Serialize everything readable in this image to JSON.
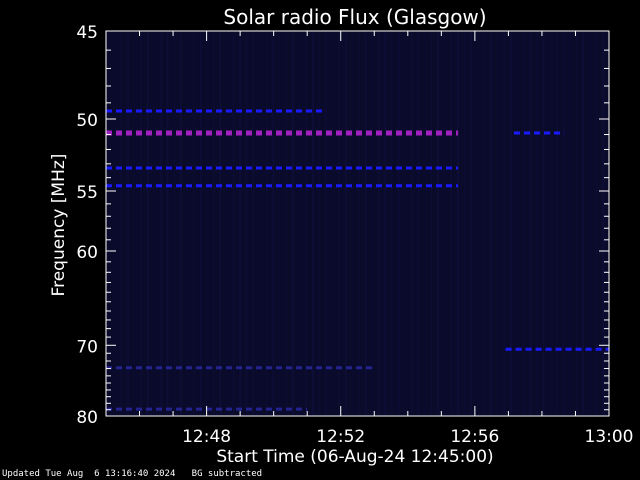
{
  "chart_data": {
    "type": "heatmap",
    "title": "Solar radio Flux (Glasgow)",
    "xlabel": "Start Time (06-Aug-24 12:45:00)",
    "ylabel": "Frequency [MHz]",
    "xlim": [
      "12:45:00",
      "13:00:00"
    ],
    "ylim": [
      45,
      80
    ],
    "y_scale": "reciprocal",
    "x_ticks": [
      "12:48",
      "12:52",
      "12:56",
      "13:00"
    ],
    "x_tick_minutes": [
      48,
      52,
      56,
      60
    ],
    "y_ticks": [
      45,
      50,
      55,
      60,
      70,
      80
    ],
    "background_color": "#0a0a2a",
    "colors": {
      "weak": "#1a1aff",
      "strong": "#a020c0"
    },
    "features": [
      {
        "type": "band",
        "freq_mhz": 50.9,
        "start": "12:45:00",
        "end": "12:55:30",
        "intensity": "strong"
      },
      {
        "type": "band",
        "freq_mhz": 49.5,
        "start": "12:45:00",
        "end": "12:51:30",
        "intensity": "weak"
      },
      {
        "type": "band",
        "freq_mhz": 53.3,
        "start": "12:45:00",
        "end": "12:55:30",
        "intensity": "weak"
      },
      {
        "type": "band",
        "freq_mhz": 54.6,
        "start": "12:45:00",
        "end": "12:55:30",
        "intensity": "weak"
      },
      {
        "type": "band",
        "freq_mhz": 70.5,
        "start": "12:56:55",
        "end": "13:00:00",
        "intensity": "weak"
      },
      {
        "type": "band",
        "freq_mhz": 72.9,
        "start": "12:45:00",
        "end": "12:53:00",
        "intensity": "faint"
      },
      {
        "type": "band",
        "freq_mhz": 78.9,
        "start": "12:45:00",
        "end": "12:51:00",
        "intensity": "faint"
      },
      {
        "type": "band",
        "freq_mhz": 50.9,
        "start": "12:57:10",
        "end": "12:58:40",
        "intensity": "weak"
      }
    ]
  },
  "footer": {
    "updated": "Updated Tue Aug  6 13:16:40 2024",
    "note": "BG subtracted"
  }
}
